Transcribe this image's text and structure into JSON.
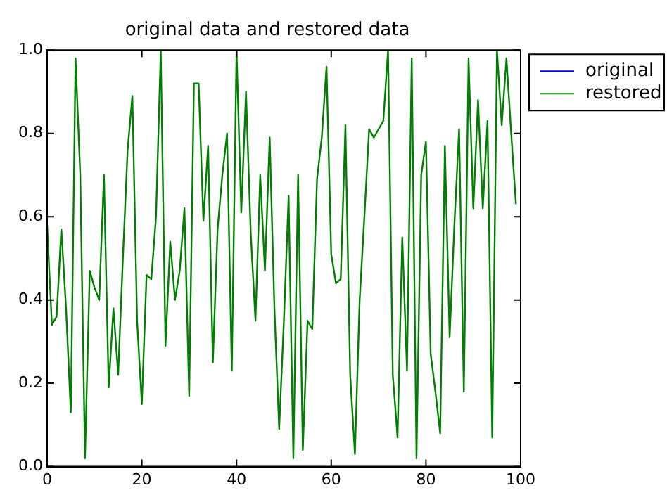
{
  "chart_data": {
    "type": "line",
    "title": "original data and restored data",
    "x": [
      0,
      1,
      2,
      3,
      4,
      5,
      6,
      7,
      8,
      9,
      10,
      11,
      12,
      13,
      14,
      15,
      16,
      17,
      18,
      19,
      20,
      21,
      22,
      23,
      24,
      25,
      26,
      27,
      28,
      29,
      30,
      31,
      32,
      33,
      34,
      35,
      36,
      37,
      38,
      39,
      40,
      41,
      42,
      43,
      44,
      45,
      46,
      47,
      48,
      49,
      50,
      51,
      52,
      53,
      54,
      55,
      56,
      57,
      58,
      59,
      60,
      61,
      62,
      63,
      64,
      65,
      66,
      67,
      68,
      69,
      70,
      71,
      72,
      73,
      74,
      75,
      76,
      77,
      78,
      79,
      80,
      81,
      82,
      83,
      84,
      85,
      86,
      87,
      88,
      89,
      90,
      91,
      92,
      93,
      94,
      95,
      96,
      97,
      98,
      99
    ],
    "series": [
      {
        "name": "original",
        "color": "#0000ff",
        "values": [
          null,
          null,
          null,
          null,
          null,
          null,
          null,
          null,
          null,
          null,
          null,
          null,
          null,
          null,
          null,
          null,
          null,
          null,
          null,
          null,
          null,
          null,
          null,
          null,
          null,
          null,
          null,
          null,
          null,
          null,
          null,
          null,
          null,
          null,
          null,
          null,
          null,
          null,
          null,
          null,
          null,
          null,
          null,
          null,
          null,
          null,
          null,
          null,
          null,
          null,
          null,
          null,
          null,
          null,
          null,
          null,
          null,
          null,
          null,
          null,
          null,
          null,
          null,
          null,
          null,
          null,
          null,
          null,
          null,
          null,
          null,
          null,
          null,
          null,
          null,
          null,
          null,
          null,
          null,
          null,
          null,
          null,
          null,
          null,
          null,
          null,
          null,
          null,
          null,
          null,
          null,
          null,
          null,
          null,
          null,
          null,
          null,
          null,
          null,
          null
        ]
      },
      {
        "name": "restored",
        "color": "#008000",
        "values": [
          0.58,
          0.34,
          0.36,
          0.57,
          0.38,
          0.13,
          0.98,
          0.7,
          0.02,
          0.47,
          0.43,
          0.4,
          0.7,
          0.19,
          0.38,
          0.22,
          0.5,
          0.76,
          0.89,
          0.35,
          0.15,
          0.46,
          0.45,
          0.6,
          1.0,
          0.29,
          0.54,
          0.4,
          0.47,
          0.62,
          0.17,
          0.92,
          0.92,
          0.59,
          0.77,
          0.25,
          0.57,
          0.7,
          0.8,
          0.23,
          1.0,
          0.61,
          0.9,
          0.56,
          0.35,
          0.7,
          0.47,
          0.79,
          0.38,
          0.09,
          0.35,
          0.65,
          0.02,
          0.7,
          0.04,
          0.35,
          0.33,
          0.69,
          0.79,
          0.96,
          0.51,
          0.44,
          0.45,
          0.82,
          0.22,
          0.03,
          0.4,
          0.6,
          0.81,
          0.79,
          0.81,
          0.83,
          1.0,
          0.22,
          0.07,
          0.55,
          0.23,
          0.98,
          0.02,
          0.7,
          0.78,
          0.27,
          0.18,
          0.08,
          0.77,
          0.31,
          0.58,
          0.81,
          0.18,
          0.98,
          0.62,
          0.88,
          0.62,
          0.83,
          0.07,
          1.0,
          0.82,
          0.98,
          0.8,
          0.63
        ]
      }
    ],
    "xlim": [
      0,
      100
    ],
    "xticks": [
      0,
      20,
      40,
      60,
      80,
      100
    ],
    "ylim": [
      0,
      1
    ],
    "yticks": [
      {
        "value": 0,
        "label": "0.0"
      },
      {
        "value": 0.2,
        "label": "0.2"
      },
      {
        "value": 0.4,
        "label": "0.4"
      },
      {
        "value": 0.6,
        "label": "0.6"
      },
      {
        "value": 0.8,
        "label": "0.8"
      },
      {
        "value": 1,
        "label": "1.0"
      }
    ],
    "grid": false,
    "legend": "top right",
    "marker": "none",
    "line_style": "solid"
  }
}
